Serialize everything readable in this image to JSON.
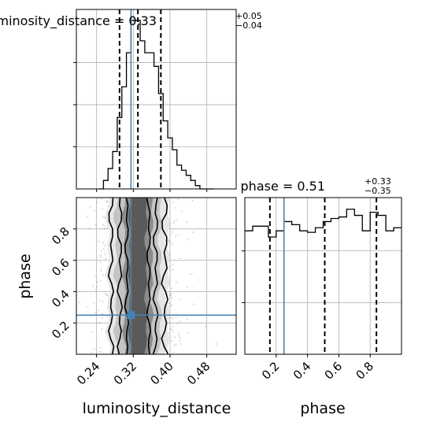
{
  "chart_data": {
    "type": "corner",
    "parameters": [
      "luminosity_distance",
      "phase"
    ],
    "truths": {
      "luminosity_distance": 0.315,
      "phase": 0.25
    },
    "titles": [
      {
        "param": "luminosity_distance",
        "text": "luminosity_distance = 0.33",
        "plus": "+0.05",
        "minus": "−0.04"
      },
      {
        "param": "phase",
        "text": "phase = 0.51",
        "plus": "+0.33",
        "minus": "−0.35"
      }
    ],
    "xlabels": [
      "luminosity_distance",
      "phase"
    ],
    "ylabels": [
      "phase"
    ],
    "luminosity_distance_ticks": [
      "0.24",
      "0.32",
      "0.40",
      "0.48"
    ],
    "phase_ticks": [
      "0.2",
      "0.4",
      "0.6",
      "0.8"
    ],
    "panels": [
      {
        "name": "luminosity_distance-marginal",
        "type": "step-histogram",
        "xlim": [
          0.196,
          0.544
        ],
        "bin_edges": [
          0.245,
          0.255,
          0.265,
          0.275,
          0.285,
          0.295,
          0.305,
          0.315,
          0.325,
          0.335,
          0.345,
          0.355,
          0.365,
          0.375,
          0.385,
          0.395,
          0.405,
          0.415,
          0.425,
          0.435,
          0.445,
          0.455,
          0.465,
          0.475,
          0.485,
          0.495
        ],
        "counts": [
          0.0,
          0.05,
          0.12,
          0.22,
          0.42,
          0.6,
          0.8,
          0.99,
          0.99,
          0.87,
          0.8,
          0.8,
          0.72,
          0.56,
          0.4,
          0.3,
          0.23,
          0.14,
          0.11,
          0.08,
          0.05,
          0.02,
          0.0,
          0.0,
          0.0
        ],
        "quantiles": [
          0.29,
          0.33,
          0.38
        ],
        "truth": 0.315,
        "grid": true
      },
      {
        "name": "phase-marginal",
        "type": "step-histogram",
        "xlim": [
          0.0,
          1.0
        ],
        "bin_edges": [
          0.0,
          0.05,
          0.1,
          0.15,
          0.2,
          0.25,
          0.3,
          0.35,
          0.4,
          0.45,
          0.5,
          0.55,
          0.6,
          0.65,
          0.7,
          0.75,
          0.8,
          0.85,
          0.9,
          0.95,
          1.0
        ],
        "counts": [
          0.8,
          0.83,
          0.83,
          0.76,
          0.8,
          0.86,
          0.84,
          0.8,
          0.79,
          0.82,
          0.86,
          0.88,
          0.89,
          0.94,
          0.9,
          0.8,
          0.92,
          0.9,
          0.8,
          0.82
        ],
        "quantiles": [
          0.16,
          0.51,
          0.84
        ],
        "truth": 0.25,
        "grid": true
      },
      {
        "name": "luminosity_distance-vs-phase-density",
        "type": "2d-density",
        "xlim": [
          0.196,
          0.544
        ],
        "ylim": [
          0.0,
          1.0
        ],
        "contour_levels": [
          "39.3%",
          "86.5%",
          "98.9%"
        ],
        "truth": [
          0.315,
          0.25
        ],
        "grid": true
      }
    ]
  }
}
